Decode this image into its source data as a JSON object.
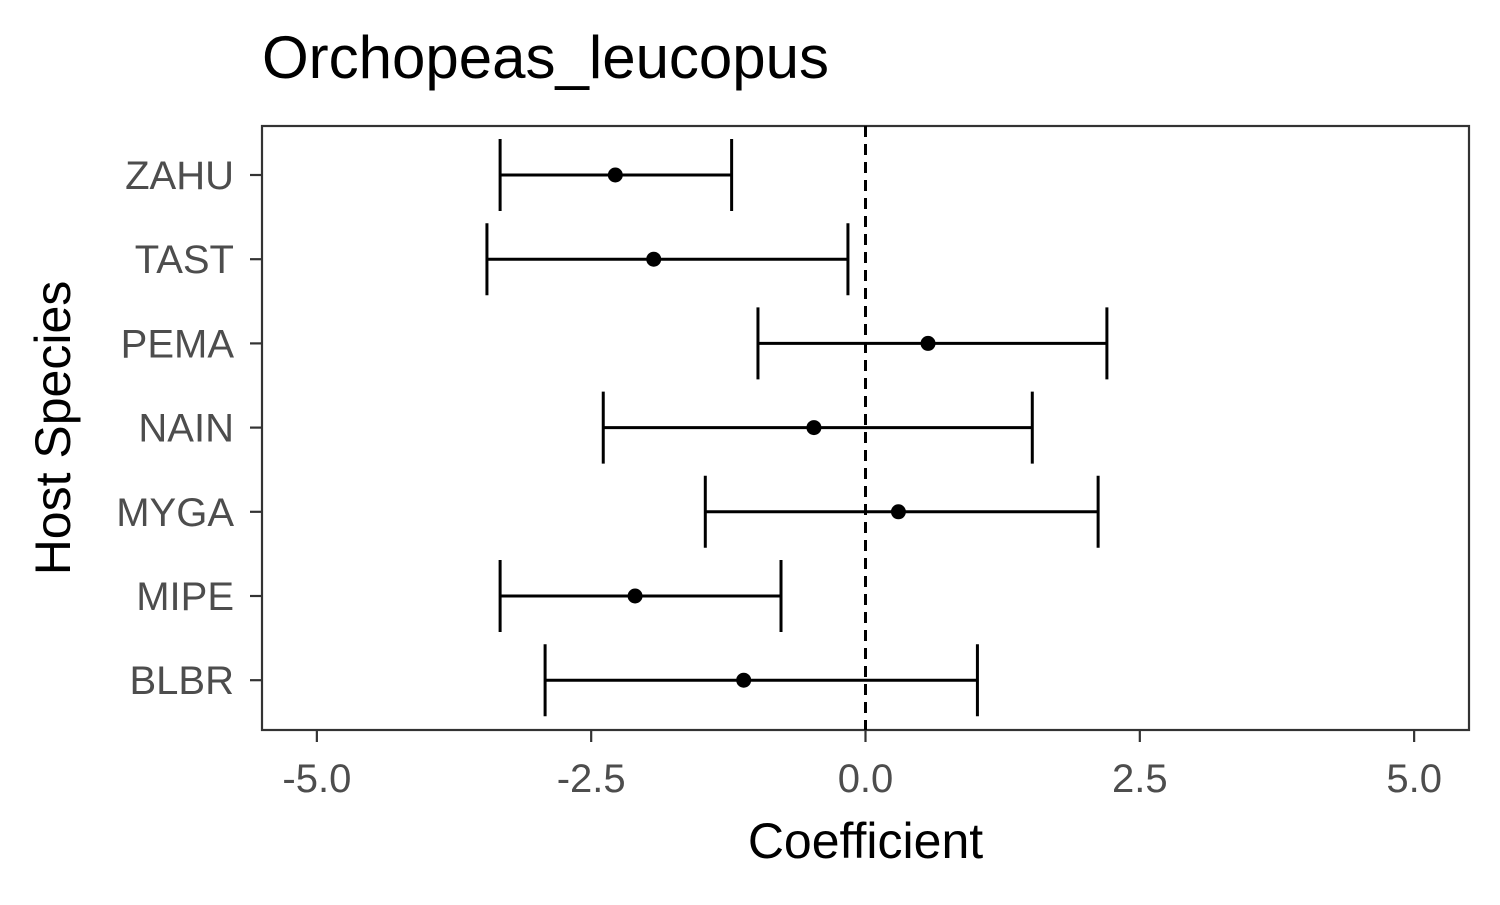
{
  "chart_data": {
    "type": "forest",
    "title": "Orchopeas_leucopus",
    "xlabel": "Coefficient",
    "ylabel": "Host Species",
    "xlim": [
      -5.5,
      5.5
    ],
    "x_ticks": [
      -5.0,
      -2.5,
      0.0,
      2.5,
      5.0
    ],
    "x_tick_labels": [
      "-5.0",
      "-2.5",
      "0.0",
      "2.5",
      "5.0"
    ],
    "reference_line": 0,
    "categories": [
      "ZAHU",
      "TAST",
      "PEMA",
      "NAIN",
      "MYGA",
      "MIPE",
      "BLBR"
    ],
    "estimates": [
      {
        "label": "ZAHU",
        "value": -2.28,
        "lower": -3.33,
        "upper": -1.22
      },
      {
        "label": "TAST",
        "value": -1.93,
        "lower": -3.45,
        "upper": -0.16
      },
      {
        "label": "PEMA",
        "value": 0.57,
        "lower": -0.98,
        "upper": 2.2
      },
      {
        "label": "NAIN",
        "value": -0.47,
        "lower": -2.39,
        "upper": 1.52
      },
      {
        "label": "MYGA",
        "value": 0.3,
        "lower": -1.46,
        "upper": 2.12
      },
      {
        "label": "MIPE",
        "value": -2.1,
        "lower": -3.33,
        "upper": -0.77
      },
      {
        "label": "BLBR",
        "value": -1.11,
        "lower": -2.92,
        "upper": 1.02
      }
    ],
    "grid": false,
    "legend": "none",
    "colors": {
      "mark": "#000000",
      "panel_border": "#333333",
      "tick_text": "#4d4d4d"
    }
  }
}
